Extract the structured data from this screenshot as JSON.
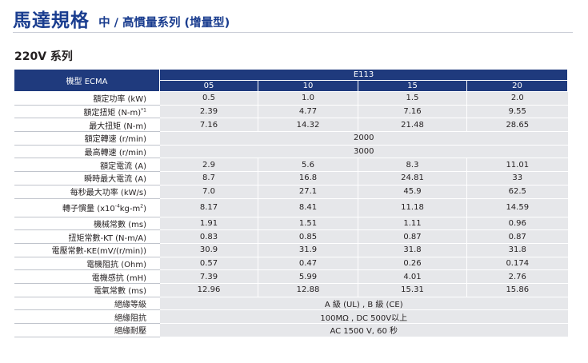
{
  "header": {
    "title": "馬達規格",
    "subtitle": "中 / 高慣量系列 (增量型)"
  },
  "section_title": "220V  系列",
  "table": {
    "model_label": "機型 ECMA",
    "group_label": "E113",
    "columns": [
      "05",
      "10",
      "15",
      "20"
    ],
    "rows": [
      {
        "label": "額定功率 (kW)",
        "values": [
          "0.5",
          "1.0",
          "1.5",
          "2.0"
        ]
      },
      {
        "label": "額定扭矩 (N-m)",
        "sup": "*1",
        "values": [
          "2.39",
          "4.77",
          "7.16",
          "9.55"
        ]
      },
      {
        "label": "最大扭矩 (N-m)",
        "values": [
          "7.16",
          "14.32",
          "21.48",
          "28.65"
        ]
      },
      {
        "label": "額定轉速 (r/min)",
        "merged": "2000"
      },
      {
        "label": "最高轉速 (r/min)",
        "merged": "3000"
      },
      {
        "label": "額定電流 (A)",
        "values": [
          "2.9",
          "5.6",
          "8.3",
          "11.01"
        ]
      },
      {
        "label": "瞬時最大電流 (A)",
        "values": [
          "8.7",
          "16.8",
          "24.81",
          "33"
        ]
      },
      {
        "label": "每秒最大功率 (kW/s)",
        "values": [
          "7.0",
          "27.1",
          "45.9",
          "62.5"
        ]
      },
      {
        "label_prefix": "轉子慣量 (x10",
        "label_sup1": "-4",
        "label_mid": "kg-m",
        "label_sup2": "2",
        "label_suffix": ")",
        "values": [
          "8.17",
          "8.41",
          "11.18",
          "14.59"
        ]
      },
      {
        "label": "機械常數 (ms)",
        "values": [
          "1.91",
          "1.51",
          "1.11",
          "0.96"
        ]
      },
      {
        "label": "扭矩常數-KT (N-m/A)",
        "values": [
          "0.83",
          "0.85",
          "0.87",
          "0.87"
        ]
      },
      {
        "label": "電壓常數-KE(mV/(r/min))",
        "values": [
          "30.9",
          "31.9",
          "31.8",
          "31.8"
        ]
      },
      {
        "label": "電機阻抗 (Ohm)",
        "values": [
          "0.57",
          "0.47",
          "0.26",
          "0.174"
        ]
      },
      {
        "label": "電機感抗 (mH)",
        "values": [
          "7.39",
          "5.99",
          "4.01",
          "2.76"
        ]
      },
      {
        "label": "電氣常數 (ms)",
        "values": [
          "12.96",
          "12.88",
          "15.31",
          "15.86"
        ]
      },
      {
        "label": "絕緣等級",
        "merged": "A 級 (UL) , B 級 (CE)"
      },
      {
        "label": "絕緣阻抗",
        "merged": "100MΩ , DC 500V以上"
      },
      {
        "label": "絕緣耐壓",
        "merged": "AC 1500 V, 60 秒"
      }
    ]
  }
}
